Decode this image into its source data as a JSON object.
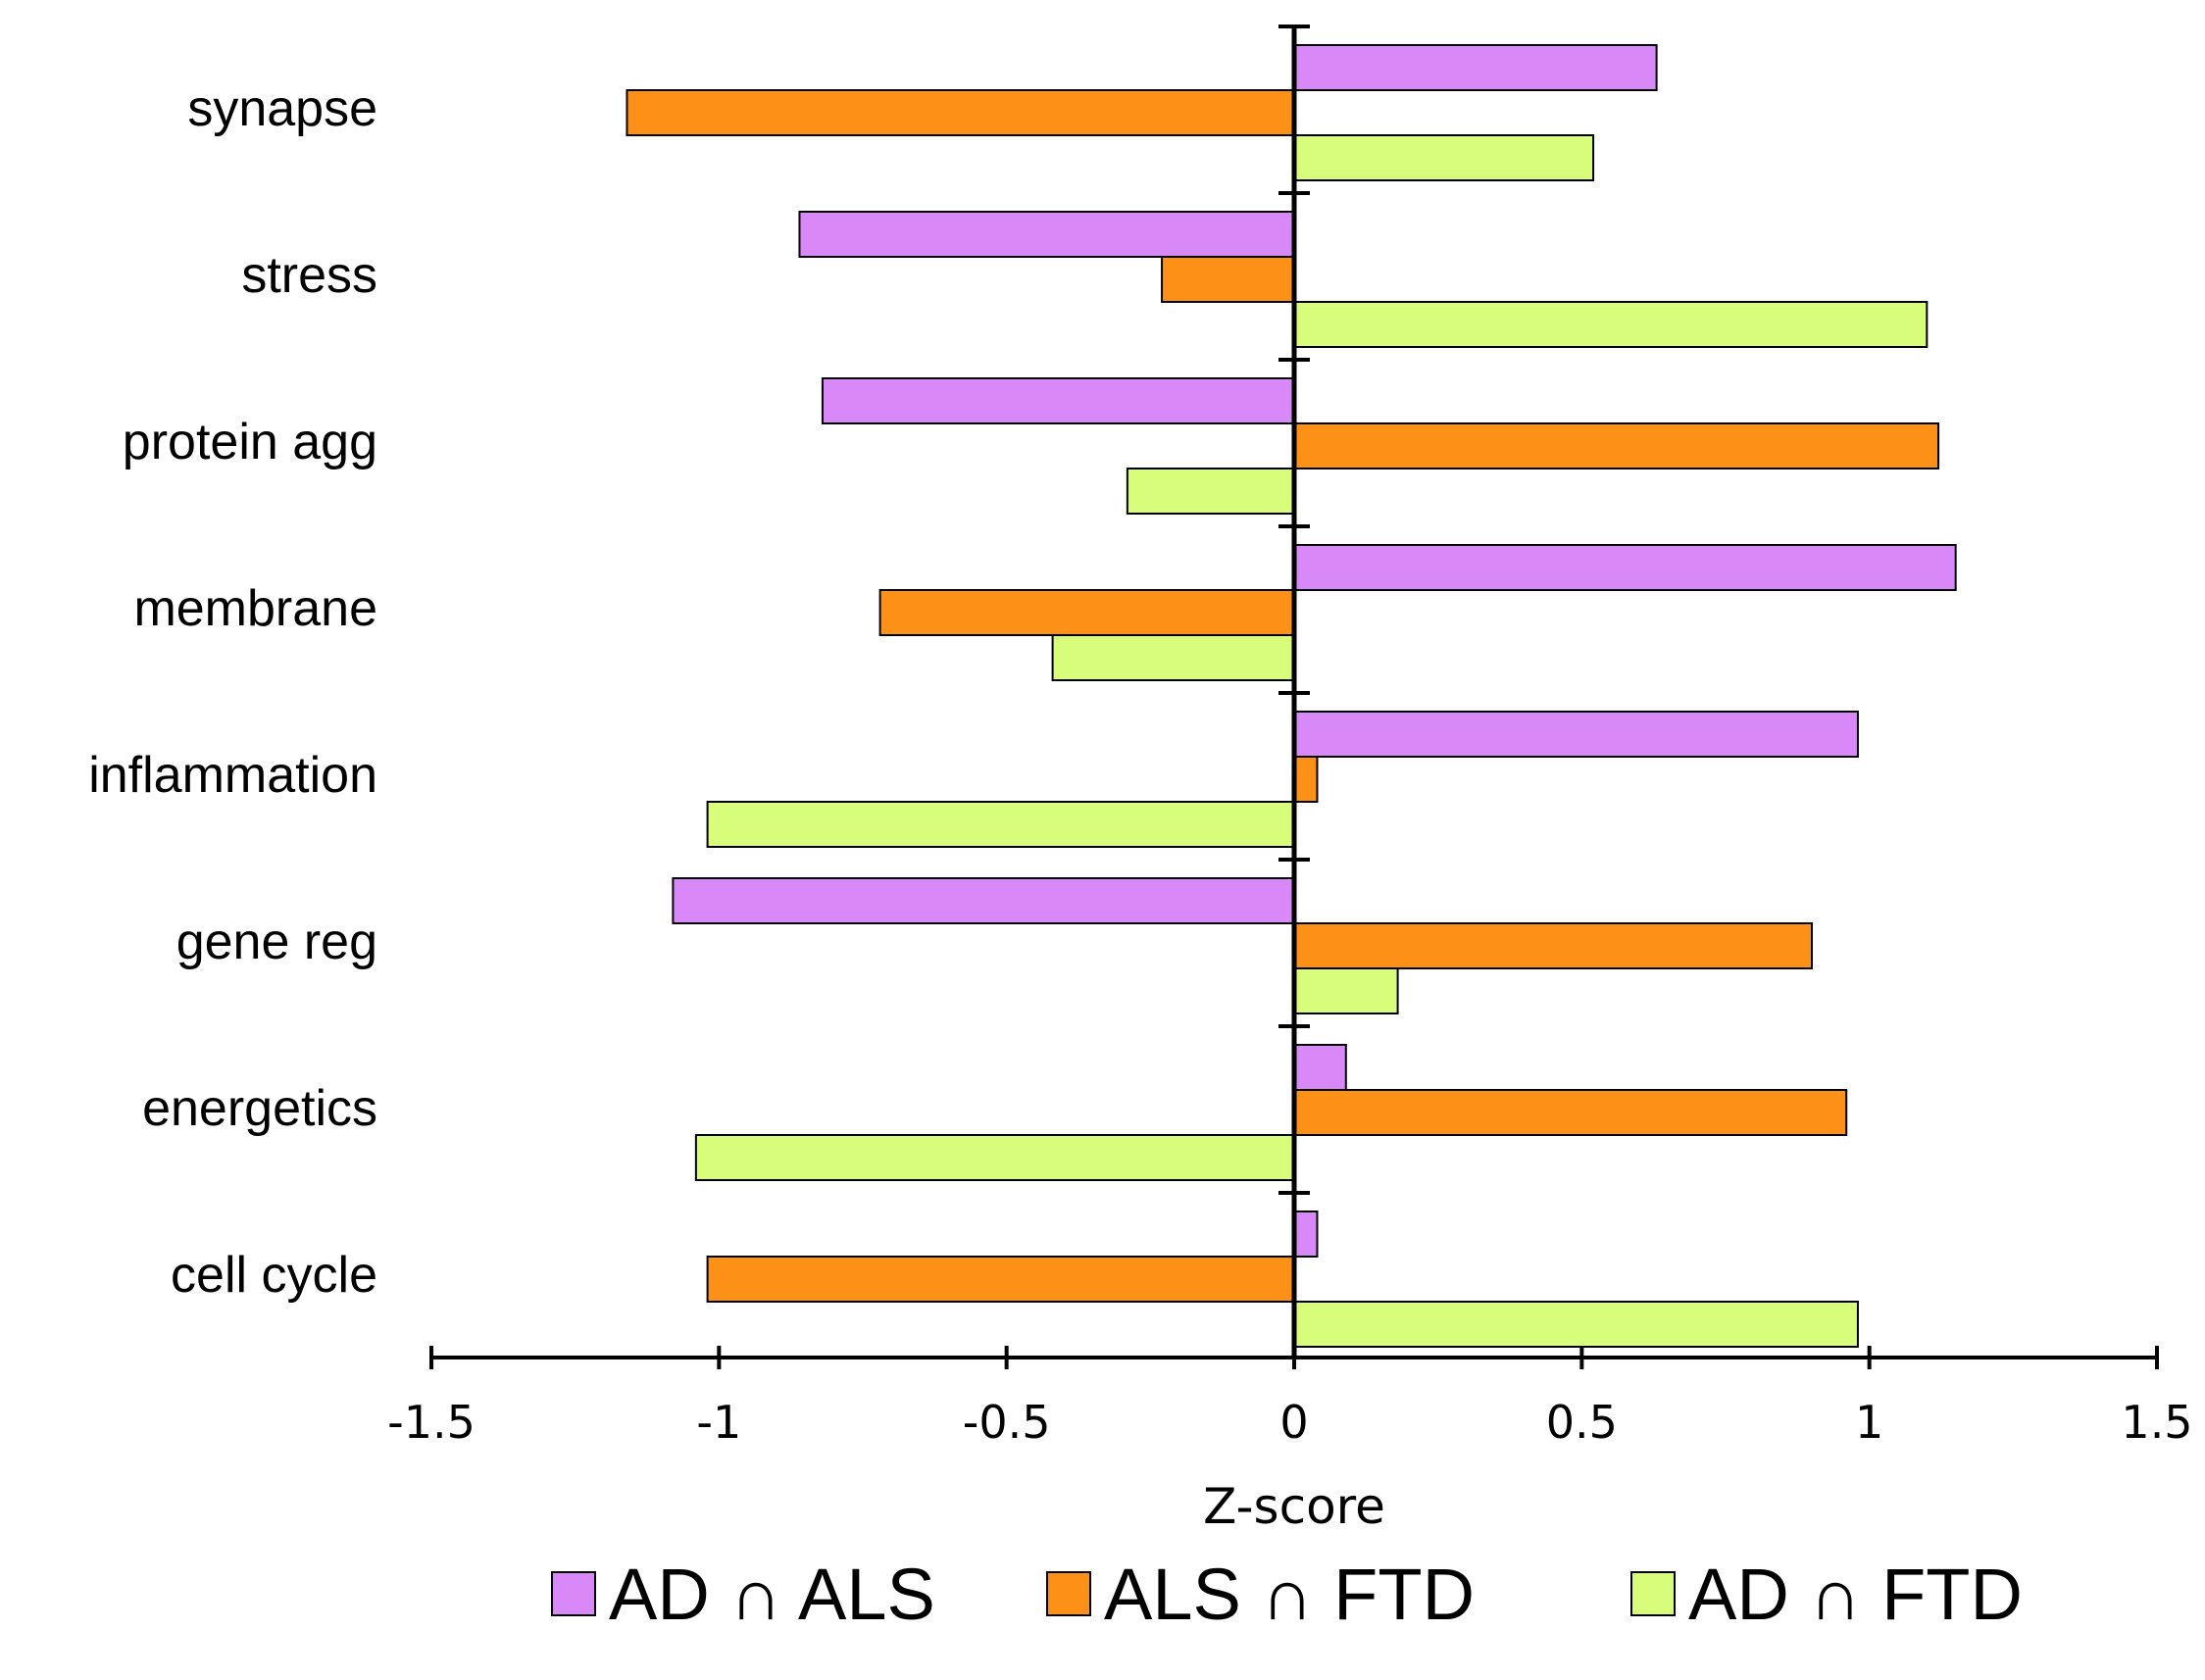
{
  "chart_data": {
    "type": "bar",
    "orientation": "horizontal",
    "title": "",
    "xlabel": "Z-score",
    "ylabel": "",
    "xlim": [
      -1.5,
      1.5
    ],
    "x_ticks": [
      -1.5,
      -1,
      -0.5,
      0,
      0.5,
      1,
      1.5
    ],
    "x_tick_labels": [
      "-1.5",
      "-1",
      "-0.5",
      "0",
      "0.5",
      "1",
      "1.5"
    ],
    "categories": [
      "synapse",
      "stress",
      "protein agg",
      "membrane",
      "inflammation",
      "gene reg",
      "energetics",
      "cell cycle"
    ],
    "series": [
      {
        "name": "AD ∩ ALS",
        "color": "#d988f8",
        "values": [
          0.63,
          -0.86,
          -0.82,
          1.15,
          0.98,
          -1.08,
          0.09,
          0.04
        ]
      },
      {
        "name": "ALS ∩ FTD",
        "color": "#fd9016",
        "values": [
          -1.16,
          -0.23,
          1.12,
          -0.72,
          0.04,
          0.9,
          0.96,
          -1.02
        ]
      },
      {
        "name": "AD ∩ FTD",
        "color": "#d8fd7a",
        "values": [
          0.52,
          1.1,
          -0.29,
          -0.42,
          -1.02,
          0.18,
          -1.04,
          0.98
        ]
      }
    ],
    "legend_position": "bottom",
    "grid": false
  }
}
